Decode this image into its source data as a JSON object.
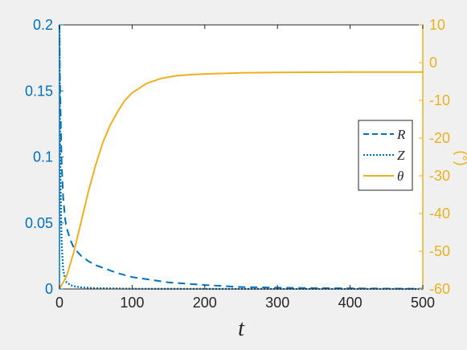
{
  "chart_data": {
    "type": "line",
    "xlabel": "t",
    "ylabel_left": "",
    "ylabel_right": "(°)",
    "xlim": [
      0,
      500
    ],
    "ylim_left": [
      0,
      0.2
    ],
    "ylim_right": [
      -60,
      10
    ],
    "x_ticks": [
      "0",
      "100",
      "200",
      "300",
      "400",
      "500"
    ],
    "y_left_ticks": [
      "0",
      "0.05",
      "0.1",
      "0.15",
      "0.2"
    ],
    "y_right_ticks": [
      "-60",
      "-50",
      "-40",
      "-30",
      "-20",
      "-10",
      "0",
      "10"
    ],
    "grid": false,
    "legend_position": "right",
    "colors": {
      "left_axis": "#0072bd",
      "right_axis": "#edb120",
      "axis": "#262626"
    },
    "series": [
      {
        "name": "R",
        "axis": "left",
        "style": "dashed",
        "color": "#0072bd",
        "x": [
          0,
          0.5,
          1,
          2,
          3,
          5,
          8,
          10,
          15,
          20,
          30,
          40,
          50,
          60,
          80,
          100,
          125,
          150,
          200,
          250,
          300,
          350,
          400,
          450,
          500
        ],
        "y": [
          0.2,
          0.165,
          0.15,
          0.12,
          0.095,
          0.07,
          0.052,
          0.046,
          0.037,
          0.031,
          0.025,
          0.021,
          0.018,
          0.016,
          0.012,
          0.009,
          0.007,
          0.005,
          0.003,
          0.0015,
          0.001,
          0.0007,
          0.0005,
          0.0003,
          0.0002
        ]
      },
      {
        "name": "Z",
        "axis": "left",
        "style": "dotted",
        "color": "#0072bd",
        "x": [
          0,
          0.5,
          1,
          2,
          3,
          5,
          8,
          10,
          15,
          20,
          30,
          50,
          100,
          200,
          300,
          400,
          500
        ],
        "y": [
          0.2,
          0.14,
          0.1,
          0.06,
          0.035,
          0.015,
          0.007,
          0.005,
          0.003,
          0.002,
          0.0012,
          0.0006,
          0.0002,
          0.0001,
          5e-05,
          3e-05,
          2e-05
        ]
      },
      {
        "name": "θ",
        "axis": "right",
        "style": "solid",
        "color": "#edb120",
        "x": [
          0,
          10,
          20,
          30,
          40,
          50,
          60,
          70,
          80,
          90,
          100,
          120,
          140,
          160,
          180,
          200,
          250,
          300,
          350,
          400,
          450,
          500
        ],
        "y": [
          -60,
          -56.5,
          -50,
          -42,
          -34,
          -27,
          -21,
          -16.5,
          -13,
          -10,
          -8,
          -5.5,
          -4.2,
          -3.5,
          -3.2,
          -3,
          -2.7,
          -2.6,
          -2.55,
          -2.5,
          -2.5,
          -2.5
        ]
      }
    ]
  }
}
